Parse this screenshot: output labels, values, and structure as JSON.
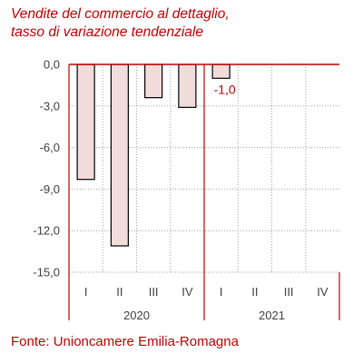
{
  "title_line1": "Vendite del commercio al dettaglio,",
  "title_line2": "tasso di variazione tendenziale",
  "source": "Fonte: Unioncamere Emilia-Romagna",
  "colors": {
    "bar_fill": "#f2dcdb",
    "bar_stroke": "#000000",
    "accent": "#c00000",
    "grid": "#a0a0a0"
  },
  "chart_data": {
    "type": "bar",
    "title": "Vendite del commercio al dettaglio, tasso di variazione tendenziale",
    "categories": [
      "I",
      "II",
      "III",
      "IV",
      "I",
      "II",
      "III",
      "IV"
    ],
    "groups": [
      {
        "label": "2020",
        "categories": [
          "I",
          "II",
          "III",
          "IV"
        ]
      },
      {
        "label": "2021",
        "categories": [
          "I",
          "II",
          "III",
          "IV"
        ]
      }
    ],
    "values": [
      -8.3,
      -13.1,
      -2.4,
      -3.1,
      -1.0,
      null,
      null,
      null
    ],
    "data_labels": [
      {
        "index": 4,
        "text": "-1,0"
      }
    ],
    "y_ticks": [
      "0,0",
      "-3,0",
      "-6,0",
      "-9,0",
      "-12,0",
      "-15,0"
    ],
    "y_tick_values": [
      0,
      -3,
      -6,
      -9,
      -12,
      -15
    ],
    "ylim": [
      -15,
      0
    ],
    "grid": true,
    "legend": "none"
  }
}
